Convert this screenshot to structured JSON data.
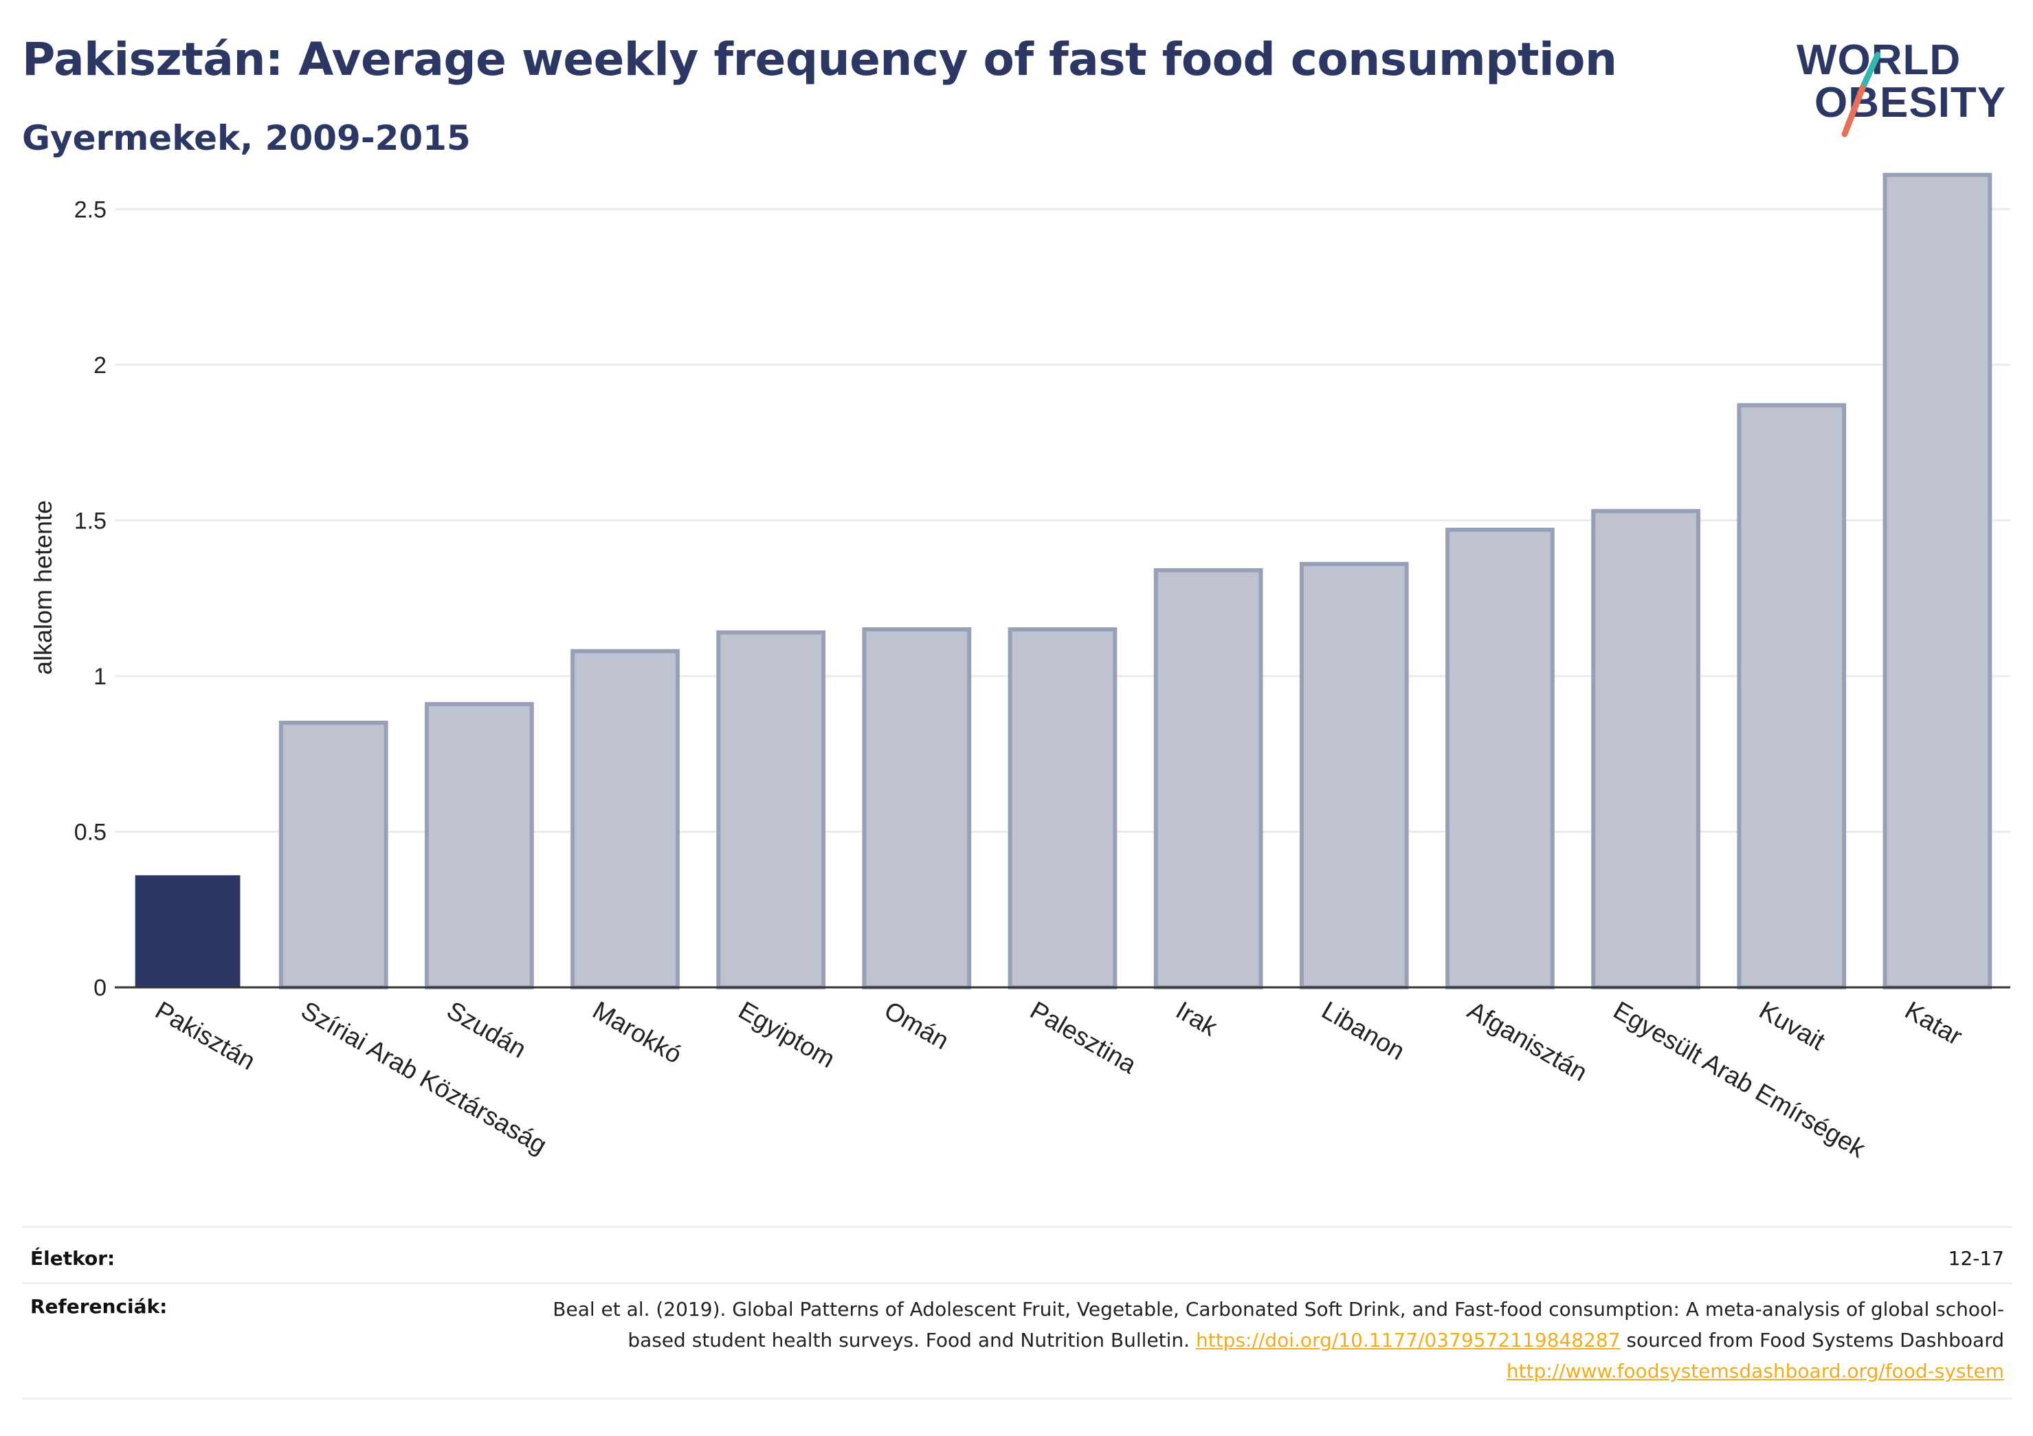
{
  "header": {
    "title": "Pakisztán: Average weekly frequency of fast food consumption",
    "subtitle": "Gyermekek, 2009-2015"
  },
  "logo": {
    "line1": "WORLD",
    "line2": "OBESITY",
    "colors": {
      "text": "#2c3764",
      "slash_teal": "#36b6b0",
      "slash_red": "#e8705a"
    }
  },
  "chart_data": {
    "type": "bar",
    "title": "",
    "xlabel": "",
    "ylabel": "alkalom hetente",
    "categories": [
      "Pakisztán",
      "Szíriai Arab Köztársaság",
      "Szudán",
      "Marokkó",
      "Egyiptom",
      "Omán",
      "Palesztina",
      "Irak",
      "Libanon",
      "Afganisztán",
      "Egyesült Arab Emírségek",
      "Kuvait",
      "Katar"
    ],
    "values": [
      0.36,
      0.85,
      0.91,
      1.08,
      1.14,
      1.15,
      1.15,
      1.34,
      1.36,
      1.47,
      1.53,
      1.87,
      2.61
    ],
    "highlight": "Pakisztán",
    "ylim": [
      0,
      2.62
    ],
    "yticks": [
      0,
      0.5,
      1,
      1.5,
      2,
      2.5
    ],
    "ytick_labels": [
      "0",
      "0.5",
      "1",
      "1.5",
      "2",
      "2.5"
    ],
    "grid": true,
    "colors": {
      "highlight": "#2c3764",
      "bar": "#bfc3d0",
      "bar_edge": "#98a0b8",
      "grid": "#e9ebf2",
      "axis": "#333333"
    }
  },
  "footer": {
    "age_label": "Életkor:",
    "age_value": "12-17",
    "refs_label": "Referenciák:",
    "refs_text_1": "Beal et al. (2019). Global Patterns of Adolescent Fruit, Vegetable, Carbonated Soft Drink, and Fast-food consumption: A meta-analysis of global school-based student health surveys. Food and Nutrition Bulletin. ",
    "refs_link_1": "https://doi.org/10.1177/0379572119848287",
    "refs_text_2": " sourced from Food Systems Dashboard ",
    "refs_link_2": "http://www.foodsystemsdashboard.org/food-system"
  }
}
